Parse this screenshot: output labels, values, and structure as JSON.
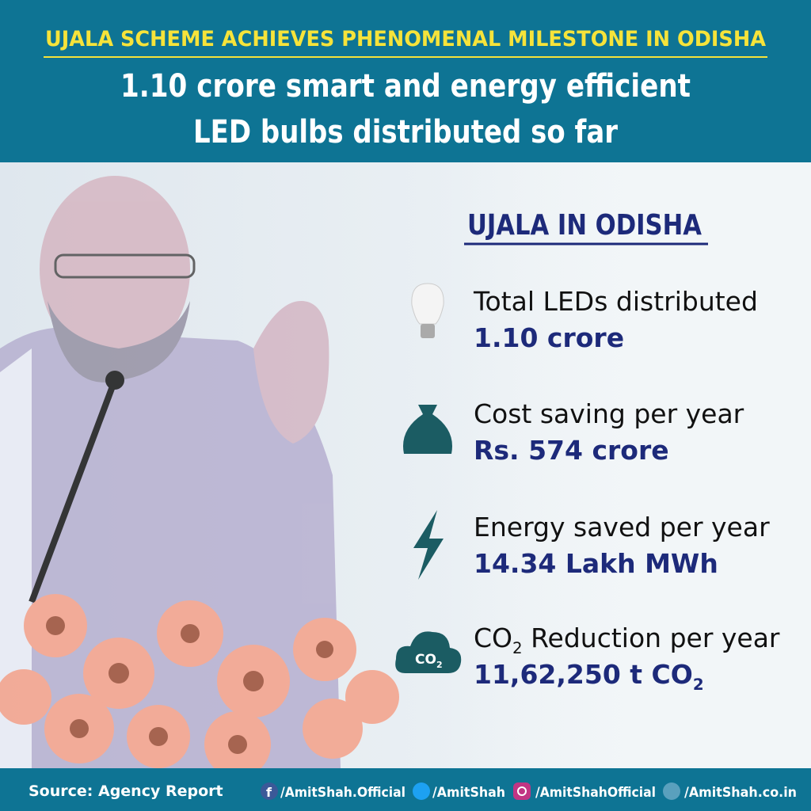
{
  "header": {
    "title": "UJALA SCHEME ACHIEVES PHENOMENAL MILESTONE IN ODISHA",
    "subtitle_lines": [
      "1.10 crore smart and energy efficient",
      "LED bulbs distributed so far"
    ]
  },
  "panel": {
    "heading": "UJALA IN ODISHA",
    "items": [
      {
        "icon": "bulb",
        "label": [
          "Total LEDs distributed"
        ],
        "value": [
          "1.10 crore"
        ]
      },
      {
        "icon": "bag",
        "label": [
          "Cost saving per year"
        ],
        "value": [
          "Rs. 574 crore"
        ]
      },
      {
        "icon": "bolt",
        "label": [
          "Energy saved per year"
        ],
        "value": [
          "14.34 Lakh MWh"
        ]
      },
      {
        "icon": "cloud",
        "icon_text": [
          "CO",
          "2"
        ],
        "label": [
          "CO",
          "2",
          " Reduction per year"
        ],
        "value": [
          "11,62,250 t CO",
          "2"
        ]
      }
    ]
  },
  "footer": {
    "source": "Source: Agency Report",
    "links": [
      "/AmitShah.Official",
      "/AmitShah",
      "/AmitShahOfficial",
      "/AmitShah.co.in"
    ]
  }
}
